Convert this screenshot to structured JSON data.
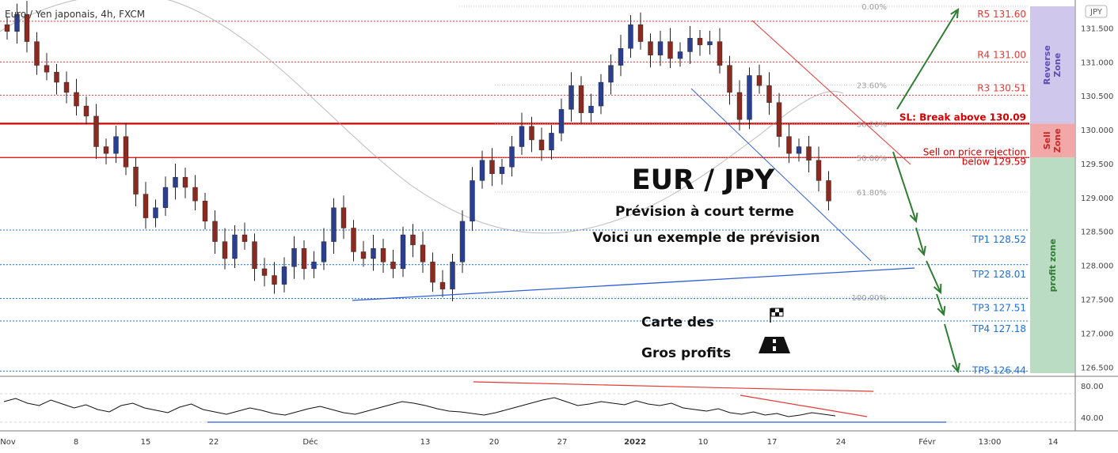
{
  "header": {
    "symbol_title": "Euro / Yen japonais, 4h, FXCM",
    "currency_badge": "JPY"
  },
  "chart_data": {
    "type": "candlestick",
    "title": "EUR / JPY",
    "subtitle_1": "Prévision à court terme",
    "subtitle_2": "Voici un exemple de prévision",
    "roadmap_text_1": "Carte des",
    "roadmap_text_2": "Gros profits",
    "price_axis": {
      "range": [
        126.41,
        131.82
      ],
      "ticks": [
        {
          "v": 131.5,
          "label": "131.500"
        },
        {
          "v": 131.0,
          "label": "131.000"
        },
        {
          "v": 130.5,
          "label": "130.500"
        },
        {
          "v": 130.0,
          "label": "130.000"
        },
        {
          "v": 129.5,
          "label": "129.500"
        },
        {
          "v": 129.0,
          "label": "129.000"
        },
        {
          "v": 128.5,
          "label": "128.500"
        },
        {
          "v": 128.0,
          "label": "128.000"
        },
        {
          "v": 127.5,
          "label": "127.500"
        },
        {
          "v": 127.0,
          "label": "127.000"
        },
        {
          "v": 126.5,
          "label": "126.500"
        }
      ]
    },
    "time_axis": [
      "Nov",
      "8",
      "15",
      "22",
      "Déc",
      "13",
      "20",
      "27",
      "2022",
      "10",
      "17",
      "24",
      "Févr",
      "13:00",
      "14"
    ],
    "levels": [
      {
        "name": "R5",
        "label": "R5 131.60",
        "value": 131.6,
        "color": "#e53935"
      },
      {
        "name": "R4",
        "label": "R4 131.00",
        "value": 131.0,
        "color": "#e53935"
      },
      {
        "name": "R3",
        "label": "R3 130.51",
        "value": 130.51,
        "color": "#e53935"
      },
      {
        "name": "SL",
        "label": "SL: Break above 130.09",
        "value": 130.09,
        "color": "#d50000"
      },
      {
        "name": "Sell",
        "label": "Sell on price rejection",
        "label2": "below 129.59",
        "value": 129.59,
        "color": "#d50000"
      },
      {
        "name": "TP1",
        "label": "TP1 128.52",
        "value": 128.52,
        "color": "#1e6fd9"
      },
      {
        "name": "TP2",
        "label": "TP2 128.01",
        "value": 128.01,
        "color": "#1e6fd9"
      },
      {
        "name": "TP3",
        "label": "TP3 127.51",
        "value": 127.51,
        "color": "#1e6fd9"
      },
      {
        "name": "TP4",
        "label": "TP4 127.18",
        "value": 127.18,
        "color": "#1e6fd9"
      },
      {
        "name": "TP5",
        "label": "TP5 126.44",
        "value": 126.44,
        "color": "#1e6fd9"
      }
    ],
    "fibonacci": [
      {
        "label": "0.00%",
        "value": 131.82
      },
      {
        "label": "23.60%",
        "value": 130.66
      },
      {
        "label": "38.20%",
        "value": 130.09
      },
      {
        "label": "50.00%",
        "value": 129.59
      },
      {
        "label": "61.80%",
        "value": 129.08
      },
      {
        "label": "100.00%",
        "value": 127.53
      }
    ],
    "zones": [
      {
        "label": "Reverse Zone",
        "from": 130.09,
        "to": 131.82,
        "color": "#cfc8ec",
        "text_color": "#5e4db2"
      },
      {
        "label": "Sell Zone",
        "from": 129.59,
        "to": 130.09,
        "color": "#f3a8a8",
        "text_color": "#c62828"
      },
      {
        "label": "profit zone",
        "from": 126.41,
        "to": 129.59,
        "color": "#b9dcc2",
        "text_color": "#2e7d32"
      }
    ],
    "candles": [
      131.45,
      131.7,
      131.3,
      130.95,
      130.85,
      130.7,
      130.55,
      130.35,
      130.2,
      129.75,
      129.65,
      129.9,
      129.45,
      129.05,
      128.7,
      128.85,
      129.15,
      129.3,
      129.15,
      128.95,
      128.65,
      128.35,
      128.1,
      128.45,
      128.35,
      127.95,
      127.85,
      127.72,
      127.98,
      128.25,
      127.95,
      128.05,
      128.35,
      128.85,
      128.55,
      128.2,
      128.1,
      128.25,
      128.05,
      127.95,
      128.45,
      128.3,
      128.05,
      127.75,
      127.65,
      128.05,
      128.65,
      129.25,
      129.55,
      129.35,
      129.45,
      129.75,
      130.05,
      129.85,
      129.7,
      129.95,
      130.3,
      130.65,
      130.25,
      130.35,
      130.7,
      130.95,
      131.2,
      131.55,
      131.3,
      131.1,
      131.3,
      131.05,
      131.15,
      131.35,
      131.25,
      131.3,
      130.95,
      130.55,
      130.15,
      130.8,
      130.65,
      130.4,
      129.9,
      129.65,
      129.75,
      129.55,
      129.25,
      128.95
    ],
    "rsi": {
      "ticks": [
        {
          "v": 80,
          "label": "80.00"
        },
        {
          "v": 40,
          "label": "40.00"
        }
      ],
      "values": [
        60,
        64,
        58,
        55,
        62,
        57,
        52,
        56,
        50,
        47,
        55,
        58,
        52,
        49,
        46,
        53,
        57,
        50,
        47,
        44,
        48,
        52,
        49,
        45,
        43,
        47,
        51,
        54,
        50,
        46,
        44,
        48,
        52,
        56,
        60,
        58,
        55,
        51,
        48,
        47,
        45,
        43,
        46,
        50,
        54,
        58,
        62,
        65,
        60,
        55,
        57,
        60,
        58,
        56,
        61,
        57,
        55,
        58,
        52,
        50,
        48,
        51,
        46,
        44,
        47,
        43,
        45,
        41,
        43,
        46,
        44,
        42
      ]
    }
  }
}
